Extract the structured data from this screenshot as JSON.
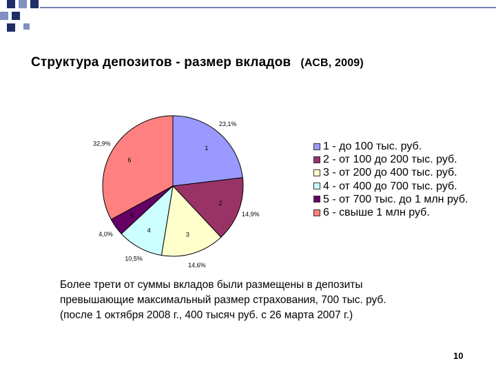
{
  "slide": {
    "title": "Структура депозитов - размер вкладов",
    "title_source": "(АСВ, 2009)",
    "note_lines": [
      "Более трети от суммы вкладов были размещены в депозиты",
      "превышающие максимальный размер страхования, 700 тыс. руб.",
      "(после 1 октября 2008 г., 400 тысяч руб. с 26 марта 2007 г.)"
    ],
    "page_number": "10",
    "colors": {
      "corner_dark": "#1f2e66",
      "corner_light": "#8090c0",
      "rule": "#6f7fb3"
    }
  },
  "chart_data": {
    "type": "pie",
    "start_angle_deg": 0,
    "direction": "clockwise",
    "slices": [
      {
        "id": "1",
        "value": 23.1,
        "value_label": "23,1%",
        "legend": "1 - до 100 тыс. руб.",
        "color": "#9999ff"
      },
      {
        "id": "2",
        "value": 14.9,
        "value_label": "14,9%",
        "legend": "2 - от 100 до 200 тыс. руб.",
        "color": "#993366"
      },
      {
        "id": "3",
        "value": 14.6,
        "value_label": "14,6%",
        "legend": "3 - от 200 до 400 тыс. руб.",
        "color": "#ffffcc"
      },
      {
        "id": "4",
        "value": 10.5,
        "value_label": "10,5%",
        "legend": "4 - от 400 до 700 тыс. руб.",
        "color": "#ccffff"
      },
      {
        "id": "5",
        "value": 4.0,
        "value_label": "4,0%",
        "legend": "5 - от 700 тыс. до 1 млн руб.",
        "color": "#660066"
      },
      {
        "id": "6",
        "value": 32.9,
        "value_label": "32,9%",
        "legend": "6 - свыше 1 млн руб.",
        "color": "#ff8080"
      }
    ],
    "legend_position": "right"
  }
}
